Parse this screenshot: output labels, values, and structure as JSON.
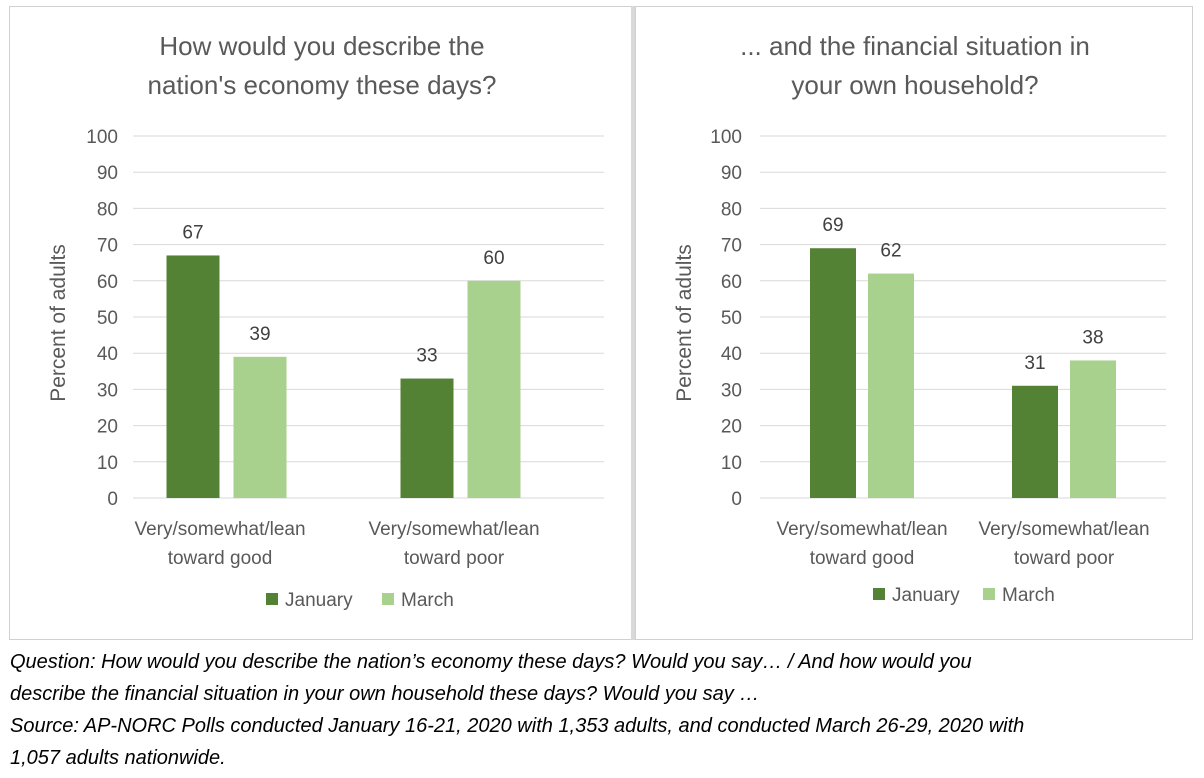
{
  "chart_data": [
    {
      "type": "bar",
      "title_lines": [
        "How would you describe the",
        "nation's economy these days?"
      ],
      "ylabel": "Percent of adults",
      "ylim": [
        0,
        100
      ],
      "yticks": [
        0,
        10,
        20,
        30,
        40,
        50,
        60,
        70,
        80,
        90,
        100
      ],
      "grid": true,
      "legend_position": "bottom",
      "categories": [
        [
          "Very/somewhat/lean",
          "toward good"
        ],
        [
          "Very/somewhat/lean",
          "toward poor"
        ]
      ],
      "series": [
        {
          "name": "January",
          "color": "#548235",
          "values": [
            67,
            33
          ]
        },
        {
          "name": "March",
          "color": "#a9d18e",
          "values": [
            39,
            60
          ]
        }
      ]
    },
    {
      "type": "bar",
      "title_lines": [
        "... and the financial situation in",
        "your own household?"
      ],
      "ylabel": "Percent of adults",
      "ylim": [
        0,
        100
      ],
      "yticks": [
        0,
        10,
        20,
        30,
        40,
        50,
        60,
        70,
        80,
        90,
        100
      ],
      "grid": true,
      "legend_position": "bottom",
      "categories": [
        [
          "Very/somewhat/lean",
          "toward good"
        ],
        [
          "Very/somewhat/lean",
          "toward poor"
        ]
      ],
      "series": [
        {
          "name": "January",
          "color": "#548235",
          "values": [
            69,
            31
          ]
        },
        {
          "name": "March",
          "color": "#a9d18e",
          "values": [
            62,
            38
          ]
        }
      ]
    }
  ],
  "notes": {
    "question_line1": "Question: How would you describe the nation’s economy these days? Would you say… / And how would you",
    "question_line2": "describe the financial situation in your own household these days? Would you say …",
    "source_line1": "Source: AP-NORC Polls conducted January 16-21, 2020 with 1,353 adults, and conducted March 26-29, 2020 with",
    "source_line2": "1,057 adults nationwide."
  }
}
